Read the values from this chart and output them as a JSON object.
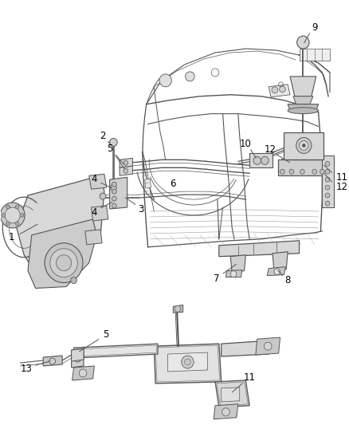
{
  "background_color": "#ffffff",
  "fig_width": 4.38,
  "fig_height": 5.33,
  "dpi": 100,
  "line_color": "#555555",
  "label_color": "#000000",
  "label_fontsize": 8.5,
  "line_width": 0.6
}
